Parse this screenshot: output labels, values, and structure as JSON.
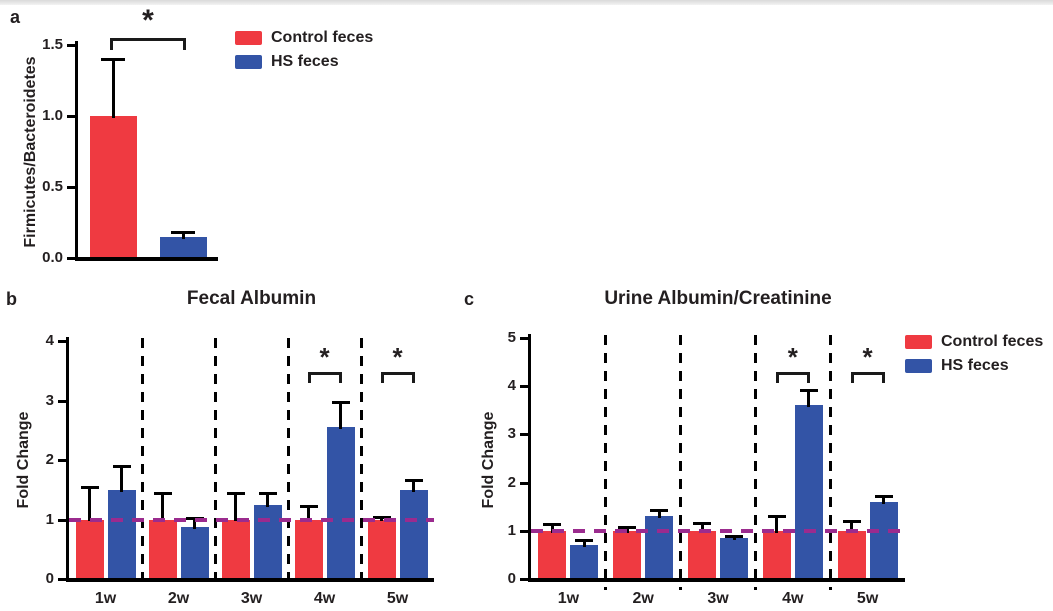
{
  "page": {
    "background": "#ffffff",
    "top_border_color": "#d9d9d9"
  },
  "colors": {
    "control_feces": "#EF3A41",
    "hs_feces": "#3354A6",
    "reference_line": "#9B2B8E",
    "axis": "#000000",
    "text": "#231F20"
  },
  "chart_data": [
    {
      "panel_label": "a",
      "type": "bar",
      "title": "",
      "ylabel": "Firmicutes/Bacteroidetes",
      "categories": [
        ""
      ],
      "ylim": [
        0,
        1.5
      ],
      "yticks": [
        0,
        0.5,
        1.0,
        1.5
      ],
      "ytick_labels": [
        "0.0",
        "0.5",
        "1.0",
        "1.5"
      ],
      "series": [
        {
          "name": "Control feces",
          "color": "#EF3A41",
          "values": [
            1.0
          ],
          "errors": [
            0.4
          ]
        },
        {
          "name": "HS feces",
          "color": "#3354A6",
          "values": [
            0.15
          ],
          "errors": [
            0.03
          ]
        }
      ],
      "significance": [
        {
          "category_index": 0,
          "between": [
            "Control feces",
            "HS feces"
          ],
          "label": "*"
        }
      ],
      "legend_position": "top-right",
      "grid": false
    },
    {
      "panel_label": "b",
      "type": "bar",
      "title": "Fecal Albumin",
      "ylabel": "Fold Change",
      "categories": [
        "1w",
        "2w",
        "3w",
        "4w",
        "5w"
      ],
      "ylim": [
        0,
        4
      ],
      "yticks": [
        0,
        1,
        2,
        3,
        4
      ],
      "ytick_labels": [
        "0",
        "1",
        "2",
        "3",
        "4"
      ],
      "series": [
        {
          "name": "Control feces",
          "color": "#EF3A41",
          "values": [
            1.0,
            1.0,
            1.0,
            1.0,
            1.0
          ],
          "errors": [
            0.55,
            0.45,
            0.45,
            0.22,
            0.05
          ]
        },
        {
          "name": "HS feces",
          "color": "#3354A6",
          "values": [
            1.5,
            0.88,
            1.25,
            2.55,
            1.5
          ],
          "errors": [
            0.4,
            0.15,
            0.2,
            0.42,
            0.17
          ]
        }
      ],
      "reference_line": {
        "y": 1,
        "style": "dashed",
        "color": "#9B2B8E"
      },
      "separators": true,
      "significance": [
        {
          "category_index": 3,
          "between": [
            "Control feces",
            "HS feces"
          ],
          "label": "*"
        },
        {
          "category_index": 4,
          "between": [
            "Control feces",
            "HS feces"
          ],
          "label": "*"
        }
      ],
      "grid": false
    },
    {
      "panel_label": "c",
      "type": "bar",
      "title": "Urine Albumin/Creatinine",
      "ylabel": "Fold Change",
      "categories": [
        "1w",
        "2w",
        "3w",
        "4w",
        "5w"
      ],
      "ylim": [
        0,
        5
      ],
      "yticks": [
        0,
        1,
        2,
        3,
        4,
        5
      ],
      "ytick_labels": [
        "0",
        "1",
        "2",
        "3",
        "4",
        "5"
      ],
      "series": [
        {
          "name": "Control feces",
          "color": "#EF3A41",
          "values": [
            1.0,
            1.0,
            1.0,
            1.0,
            1.0
          ],
          "errors": [
            0.15,
            0.08,
            0.16,
            0.3,
            0.2
          ]
        },
        {
          "name": "HS feces",
          "color": "#3354A6",
          "values": [
            0.7,
            1.3,
            0.85,
            3.6,
            1.6
          ],
          "errors": [
            0.1,
            0.13,
            0.05,
            0.32,
            0.12
          ]
        }
      ],
      "reference_line": {
        "y": 1,
        "style": "dashed",
        "color": "#9B2B8E"
      },
      "separators": true,
      "significance": [
        {
          "category_index": 3,
          "between": [
            "Control feces",
            "HS feces"
          ],
          "label": "*"
        },
        {
          "category_index": 4,
          "between": [
            "Control feces",
            "HS feces"
          ],
          "label": "*"
        }
      ],
      "legend_position": "right",
      "grid": false
    }
  ]
}
